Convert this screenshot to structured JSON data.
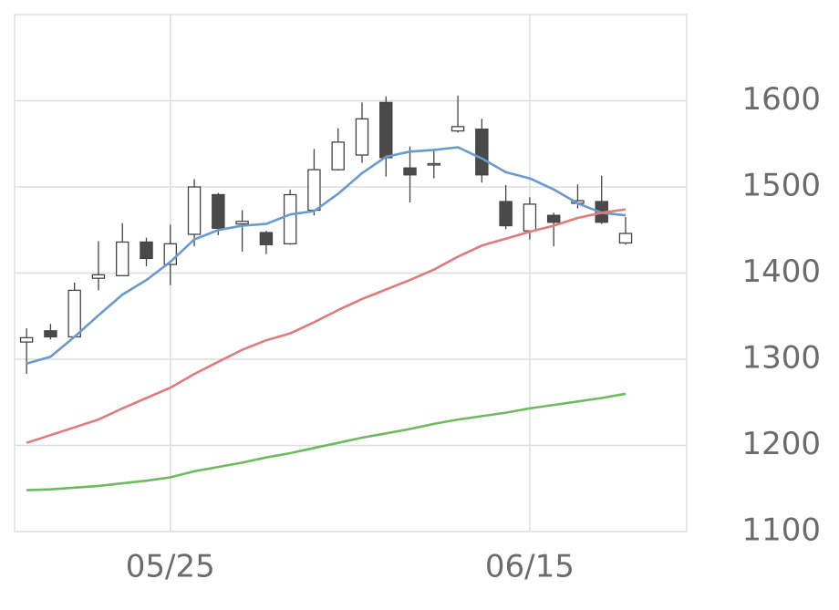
{
  "chart_data": {
    "type": "candlestick",
    "categories": [
      null,
      null,
      null,
      null,
      null,
      null,
      "05/25",
      null,
      null,
      null,
      null,
      null,
      null,
      null,
      null,
      null,
      null,
      null,
      null,
      null,
      null,
      "06/15",
      null,
      null,
      null,
      null
    ],
    "open": [
      1320,
      1333,
      1326,
      1394,
      1397,
      1436,
      1410,
      1445,
      1491,
      1457,
      1447,
      1434,
      1473,
      1520,
      1537,
      1598,
      1522,
      1526,
      1565,
      1567,
      1483,
      1449,
      1467,
      1481,
      1483,
      1435
    ],
    "high": [
      1336,
      1341,
      1389,
      1437,
      1458,
      1441,
      1456,
      1509,
      1493,
      1473,
      1449,
      1497,
      1544,
      1568,
      1598,
      1605,
      1547,
      1544,
      1606,
      1579,
      1502,
      1488,
      1470,
      1503,
      1513,
      1465
    ],
    "low": [
      1283,
      1323,
      1326,
      1380,
      1397,
      1408,
      1386,
      1431,
      1444,
      1425,
      1422,
      1433,
      1467,
      1519,
      1528,
      1512,
      1482,
      1510,
      1563,
      1505,
      1451,
      1439,
      1431,
      1475,
      1457,
      1433
    ],
    "close": [
      1325,
      1326,
      1380,
      1398,
      1436,
      1417,
      1434,
      1500,
      1452,
      1460,
      1433,
      1491,
      1520,
      1552,
      1579,
      1534,
      1514,
      1527,
      1570,
      1514,
      1455,
      1480,
      1459,
      1484,
      1459,
      1446
    ],
    "up_color": "#ffffff",
    "down_color": "#4a4a4a",
    "wick_color": "#444444",
    "series": [
      {
        "color": "#6a99d0",
        "values": [
          1295,
          1303,
          1326,
          1351,
          1375,
          1392,
          1413,
          1439,
          1450,
          1455,
          1457,
          1468,
          1472,
          1492,
          1516,
          1535,
          1541,
          1543,
          1546,
          1533,
          1517,
          1510,
          1497,
          1481,
          1470,
          1467
        ]
      },
      {
        "color": "#e07b7b",
        "values": [
          1203,
          1212,
          1221,
          1230,
          1243,
          1255,
          1267,
          1283,
          1297,
          1311,
          1322,
          1330,
          1343,
          1357,
          1370,
          1381,
          1392,
          1404,
          1419,
          1432,
          1440,
          1448,
          1455,
          1464,
          1470,
          1474
        ]
      },
      {
        "color": "#6dba5f",
        "values": [
          1148,
          1149,
          1151,
          1153,
          1156,
          1159,
          1163,
          1170,
          1175,
          1180,
          1186,
          1191,
          1197,
          1203,
          1209,
          1214,
          1219,
          1225,
          1230,
          1234,
          1238,
          1243,
          1247,
          1251,
          1255,
          1260
        ]
      }
    ],
    "ylim": [
      1100,
      1700
    ],
    "yticks": [
      1100,
      1200,
      1300,
      1400,
      1500,
      1600
    ],
    "grid": true
  }
}
